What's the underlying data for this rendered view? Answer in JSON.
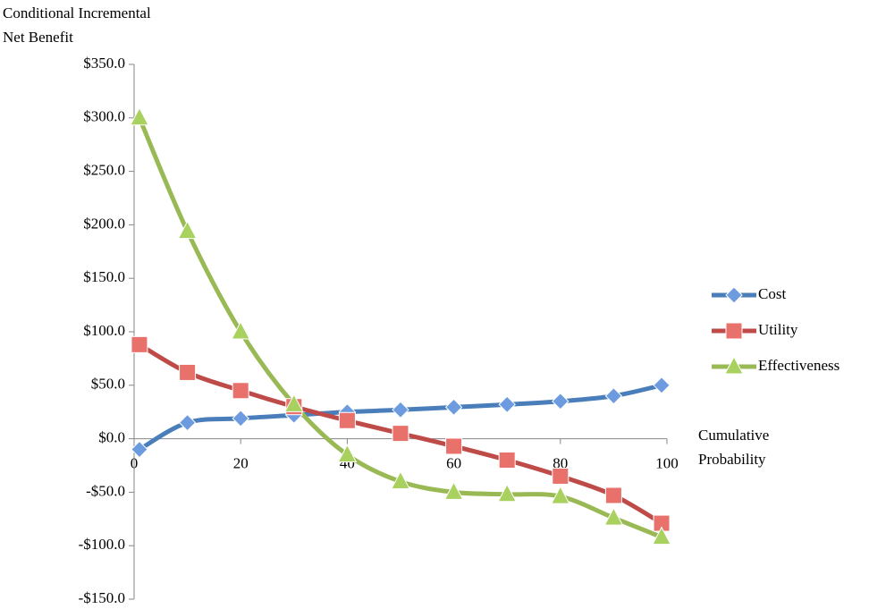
{
  "chart_data": {
    "type": "line",
    "y_label": [
      "Conditional Incremental",
      "Net Benefit"
    ],
    "x_label": [
      "Cumulative",
      "Probability"
    ],
    "x": [
      1,
      10,
      20,
      30,
      40,
      50,
      60,
      70,
      80,
      90,
      99
    ],
    "xlim": [
      0,
      100
    ],
    "xticks": [
      0,
      20,
      40,
      60,
      80,
      100
    ],
    "ylim": [
      -150,
      350
    ],
    "yticks": [
      {
        "value": -150,
        "label": "-$150.0"
      },
      {
        "value": -100,
        "label": "-$100.0"
      },
      {
        "value": -50,
        "label": "-$50.0"
      },
      {
        "value": 0,
        "label": "$0.0"
      },
      {
        "value": 50,
        "label": "$50.0"
      },
      {
        "value": 100,
        "label": "$100.0"
      },
      {
        "value": 150,
        "label": "$150.0"
      },
      {
        "value": 200,
        "label": "$200.0"
      },
      {
        "value": 250,
        "label": "$250.0"
      },
      {
        "value": 300,
        "label": "$300.0"
      },
      {
        "value": 350,
        "label": "$350.0"
      }
    ],
    "smooth": true,
    "legend": "right",
    "series": [
      {
        "name": "Cost",
        "color": "#4a7ebb",
        "marker": "diamond",
        "marker_color": "#6d9be0",
        "values": [
          -10,
          15,
          19,
          22,
          25,
          27,
          29.5,
          32,
          35,
          40,
          50
        ]
      },
      {
        "name": "Utility",
        "color": "#be4b48",
        "marker": "square",
        "marker_color": "#e8716c",
        "values": [
          88,
          62,
          45,
          30,
          17,
          5,
          -7,
          -20,
          -35,
          -53,
          -79
        ]
      },
      {
        "name": "Effectiveness",
        "color": "#98b954",
        "marker": "triangle",
        "marker_color": "#a9d160",
        "values": [
          300,
          194,
          100,
          32,
          -15,
          -40,
          -50,
          -52,
          -54,
          -74,
          -92
        ]
      }
    ]
  }
}
